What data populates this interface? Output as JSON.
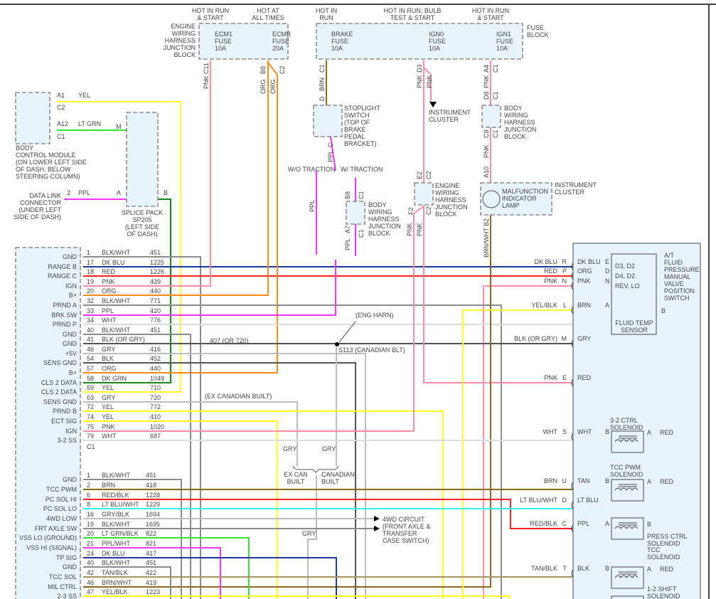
{
  "wire_colors": {
    "BLK/WHT": "#8c8c8c",
    "DK BLU": "#1c3a9c",
    "RED": "#ff2020",
    "PNK": "#ff8ea8",
    "ORG": "#ff8a1a",
    "PPL": "#ff33ff",
    "WHT": "#dcdcdc",
    "BLK": "#555555",
    "GRY": "#bdbdbd",
    "DK GRN": "#17881a",
    "YEL": "#ffff20",
    "BRN": "#8a6a1c",
    "LT BLU": "#30f4f4",
    "LT GRN": "#33e633",
    "TAN": "#a89468",
    "BRN/WHT": "#8a6a1c"
  },
  "top": {
    "hot1": [
      "HOT IN RUN",
      "& START"
    ],
    "hot2": [
      "HOT AT",
      "ALL TIMES"
    ],
    "hot3": [
      "HOT IN",
      "RUN"
    ],
    "hot4": [
      "HOT IN RUN, BULB",
      "TEST & START"
    ],
    "hot5": [
      "HOT IN RUN",
      "& START"
    ],
    "engine_jb": [
      "ENGINE",
      "WIRING",
      "HARNESS",
      "JUNCTION",
      "BLOCK"
    ],
    "fuse_block": [
      "FUSE",
      "BLOCK"
    ],
    "fuses": [
      {
        "name": "ECM1",
        "type": "FUSE",
        "rating": "10A"
      },
      {
        "name": "ECMB",
        "type": "FUSE",
        "rating": "20A"
      },
      {
        "name": "BRAKE",
        "type": "FUSE",
        "rating": "10A"
      },
      {
        "name": "IGN0",
        "type": "FUSE",
        "rating": "10A"
      },
      {
        "name": "IGN1",
        "type": "FUSE",
        "rating": "10A"
      }
    ]
  },
  "bcm": {
    "pin_a1": "A1",
    "a1_color": "YEL",
    "c2": "C2",
    "pin_a12": "A12",
    "a12_color": "LT GRN",
    "c1": "C1",
    "m": "M",
    "desc": [
      "BODY",
      "CONTROL MODULE",
      "(ON LOWER LEFT SIDE",
      "OF DASH, BELOW",
      "STEERING COLUMN)"
    ]
  },
  "dlc": {
    "desc": [
      "DATA LINK",
      "CONNECTOR",
      "(UNDER LEFT",
      "SIDE OF DASH)"
    ],
    "pin": "2",
    "color": "PPL",
    "a": "A",
    "b": "B"
  },
  "splice_pack": [
    "SPLICE PACK",
    "SP205",
    "(LEFT SIDE",
    "OF DASH)"
  ],
  "stoplight": [
    "STOPLIGHT",
    "SWITCH",
    "(TOP OF",
    "BRAKE",
    "PEDAL",
    "BRACKET)"
  ],
  "traction": {
    "wo": "W/O TRACTION",
    "w": "W/ TRACTION"
  },
  "body_jb": [
    "BODY",
    "WIRING",
    "HARNESS",
    "JUNCTION",
    "BLOCK"
  ],
  "instrument_cluster": [
    "INSTRUMENT",
    "CLUSTER"
  ],
  "engine_jb2": [
    "ENGINE",
    "WIRING",
    "HARNESS",
    "JUNCTION",
    "BLOCK"
  ],
  "body_jb2": [
    "BODY",
    "WIRING",
    "HARNESS",
    "JUNCTION",
    "BLOCK"
  ],
  "mil": [
    "MALFUNCTION",
    "INDICATOR",
    "LAMP"
  ],
  "mil_cluster": [
    "INSTRUMENT",
    "CLUSTER"
  ],
  "vlabels": {
    "pnk_c11": "PNK C11",
    "b8": "B8",
    "c2a": "C2",
    "org1": "ORG",
    "org2": "ORG",
    "c1a": "C1",
    "brn": "BRN",
    "d": "D",
    "c": "C",
    "ppl1": "PPL",
    "ppl2": "PPL",
    "b8b": "B8",
    "c1b": "C1",
    "a7": "A7",
    "c1c": "C1",
    "ppl3": "PPL",
    "d3": "D3",
    "pnk1": "PNK",
    "pnk2": "PNK",
    "a4": "A4",
    "c1d": "C1",
    "pnk3": "PNK",
    "d8": "D8",
    "c1e": "C1",
    "c9": "C9",
    "c1f": "C1",
    "pnk4": "PNK",
    "a10": "A10",
    "e2": "E2",
    "c2b": "C2",
    "f2": "F2",
    "c2c": "C2",
    "pnk5": "PNK",
    "pnk6": "PNK",
    "b2": "B2",
    "brnwht": "BRN/WHT"
  },
  "pcm_c1": [
    {
      "pin": "1",
      "name": "GND",
      "color": "BLK/WHT",
      "circuit": "451"
    },
    {
      "pin": "17",
      "name": "RANGE B",
      "color": "DK BLU",
      "circuit": "1225"
    },
    {
      "pin": "18",
      "name": "RANGE C",
      "color": "RED",
      "circuit": "1226"
    },
    {
      "pin": "19",
      "name": "IGN",
      "color": "PNK",
      "circuit": "439"
    },
    {
      "pin": "20",
      "name": "B+",
      "color": "ORG",
      "circuit": "440"
    },
    {
      "pin": "32",
      "name": "PRND A",
      "color": "BLK/WHT",
      "circuit": "771"
    },
    {
      "pin": "33",
      "name": "BRK SW",
      "color": "PPL",
      "circuit": "420"
    },
    {
      "pin": "34",
      "name": "PRND P",
      "color": "WHT",
      "circuit": "776"
    },
    {
      "pin": "40",
      "name": "GND",
      "color": "BLK/WHT",
      "circuit": "451"
    },
    {
      "pin": "41",
      "name": "GND",
      "color": "BLK (OR GRY)",
      "circuit": ""
    },
    {
      "pin": "46",
      "name": "+5V",
      "color": "GRY",
      "circuit": "416"
    },
    {
      "pin": "54",
      "name": "SENS GND",
      "color": "BLK",
      "circuit": "452"
    },
    {
      "pin": "57",
      "name": "B+",
      "color": "ORG",
      "circuit": "440"
    },
    {
      "pin": "58",
      "name": "CLS 2 DATA",
      "color": "DK GRN",
      "circuit": "1049"
    },
    {
      "pin": "59",
      "name": "CLS 2 DATA",
      "color": "YEL",
      "circuit": "710"
    },
    {
      "pin": "63",
      "name": "SENS GND",
      "color": "GRY",
      "circuit": "720"
    },
    {
      "pin": "72",
      "name": "PRND B",
      "color": "YEL",
      "circuit": "772"
    },
    {
      "pin": "74",
      "name": "ECT SIG",
      "color": "YEL",
      "circuit": "410"
    },
    {
      "pin": "75",
      "name": "IGN",
      "color": "PNK",
      "circuit": "1020"
    },
    {
      "pin": "79",
      "name": "3-2 SS",
      "color": "WHT",
      "circuit": "687"
    }
  ],
  "pcm_c1_label": "C1",
  "pcm_c2": [
    {
      "pin": "1",
      "name": "GND",
      "color": "BLK/WHT",
      "circuit": "451"
    },
    {
      "pin": "2",
      "name": "TCC PWM",
      "color": "BRN",
      "circuit": "418"
    },
    {
      "pin": "6",
      "name": "PC SOL HI",
      "color": "RED/BLK",
      "circuit": "1228"
    },
    {
      "pin": "8",
      "name": "PC SOL LO",
      "color": "LT BLU/WHT",
      "circuit": "1229"
    },
    {
      "pin": "16",
      "name": "4WD LOW",
      "color": "GRY/BLK",
      "circuit": "1694"
    },
    {
      "pin": "19",
      "name": "FRT AXLE SW",
      "color": "BLK/WHT",
      "circuit": "1695"
    },
    {
      "pin": "20",
      "name": "VSS LO (GROUND)",
      "color": "LT GRN/BLK",
      "circuit": "822"
    },
    {
      "pin": "21",
      "name": "VSS HI (SIGNAL)",
      "color": "PPL/WHT",
      "circuit": "821"
    },
    {
      "pin": "24",
      "name": "TP SIG",
      "color": "DK BLU",
      "circuit": "417"
    },
    {
      "pin": "40",
      "name": "GND",
      "color": "BLK/WHT",
      "circuit": "451"
    },
    {
      "pin": "42",
      "name": "TCC SOL",
      "color": "TAN/BLK",
      "circuit": "422"
    },
    {
      "pin": "46",
      "name": "MIL CTRL",
      "color": "BRN/WHT",
      "circuit": "419"
    },
    {
      "pin": "47",
      "name": "2-3 SS",
      "color": "YEL/BLK",
      "circuit": "1223"
    }
  ],
  "middle": {
    "eng_harn": "(ENG HARN)",
    "s113": "S113 (CANADIAN BLT)",
    "c407": "407 (OR 720)",
    "ex_can": "(EX CANADIAN BUILT)",
    "gry1": "GRY",
    "gry2": "GRY",
    "gry3": "GRY",
    "ex_can_built": [
      "EX CAN",
      "BUILT"
    ],
    "can_built": [
      "CANADIAN",
      "BUILT"
    ],
    "fwd": [
      "4WD CIRCUIT",
      "(FRONT AXLE &",
      "TRANSFER",
      "CASE SWITCH)"
    ]
  },
  "trans": {
    "connector": [
      {
        "outer": "DK BLU",
        "pin": "R",
        "inner": "DK BLU",
        "ipin": "E"
      },
      {
        "outer": "RED",
        "pin": "P",
        "inner": "ORG",
        "ipin": "D"
      },
      {
        "outer": "PNK",
        "pin": "N",
        "inner": "PNK",
        "ipin": "N"
      },
      {
        "outer": "YEL/BLK",
        "pin": "L",
        "inner": "BRN",
        "ipin": "A"
      },
      {
        "outer": "BLK (OR GRY)",
        "pin": "M",
        "inner": "GRY",
        "ipin": ""
      },
      {
        "outer": "PNK",
        "pin": "E",
        "inner": "RED",
        "ipin": ""
      },
      {
        "outer": "WHT",
        "pin": "S",
        "inner": "WHT",
        "ipin": "B"
      },
      {
        "outer": "BRN",
        "pin": "U",
        "inner": "TAN",
        "ipin": "B"
      },
      {
        "outer": "LT BLU/WHT",
        "pin": "D",
        "inner": "LT BLU",
        "ipin": ""
      },
      {
        "outer": "RED/BLK",
        "pin": "C",
        "inner": "PPL",
        "ipin": "A"
      },
      {
        "outer": "TAN/BLK",
        "pin": "T",
        "inner": "BLK",
        "ipin": "B"
      }
    ],
    "switch_positions": [
      "D3, D2",
      "D4, D2",
      "REV, LO"
    ],
    "switch_title": [
      "A/T",
      "FLUID",
      "PRESSURE",
      "MANUAL",
      "VALVE",
      "POSITION",
      "SWITCH"
    ],
    "fluid_temp": [
      "FLUID TEMP",
      "SENSOR"
    ],
    "fts_b": "B",
    "sol_32": [
      "3-2 CTRL",
      "SOLENOID"
    ],
    "sol_tccpwm": [
      "TCC PWM",
      "SOLENOID"
    ],
    "sol_press": [
      "PRESS CTRL",
      "SOLENOID"
    ],
    "sol_tcc": [
      "TCC",
      "SOLENOID"
    ],
    "sol_12": [
      "1-2 SHIFT",
      "SOLENOID"
    ],
    "pin_a": "A",
    "pin_b": "B",
    "red": "RED"
  }
}
